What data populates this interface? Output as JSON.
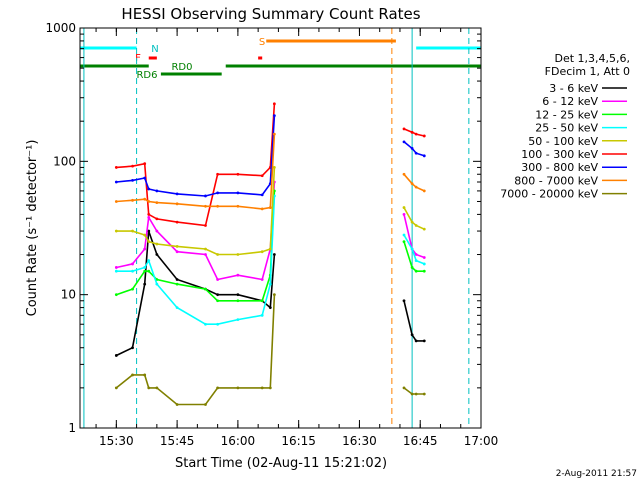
{
  "chart_data": {
    "type": "line",
    "title": "HESSI Observing Summary Count Rates",
    "xlabel": "Start Time (02-Aug-11 15:21:02)",
    "ylabel": "Count Rate (s⁻¹ detector⁻¹)",
    "x_ticks": [
      "15:30",
      "15:45",
      "16:00",
      "16:15",
      "16:30",
      "16:45",
      "17:00"
    ],
    "y_ticks": [
      "1",
      "10",
      "100",
      "1000"
    ],
    "ylim": [
      1,
      1000
    ],
    "y_scale": "log",
    "xlim": [
      "15:21:02",
      "17:00:00"
    ],
    "legend_header": [
      "Det 1,3,4,5,6,",
      "FDecim 1, Att 0"
    ],
    "legend_position": "right",
    "flag_labels": {
      "N": "N",
      "F": "F",
      "RD6": "RD6",
      "RD0": "RD0",
      "S": "S"
    },
    "date_stamp": "2-Aug-2011 21:57",
    "series": [
      {
        "name": "3 - 6 keV",
        "color": "#000000",
        "x": [
          "15:30",
          "15:34",
          "15:37",
          "15:38",
          "15:40",
          "15:45",
          "15:52",
          "15:55",
          "16:00",
          "16:06",
          "16:08",
          "16:09",
          "16:41",
          "16:43",
          "16:44",
          "16:46"
        ],
        "values": [
          3.5,
          4.0,
          12,
          30,
          20,
          13,
          11,
          10,
          10,
          9,
          8,
          20,
          9,
          5,
          4.5,
          4.5
        ]
      },
      {
        "name": "6 - 12 keV",
        "color": "#ff00ff",
        "x": [
          "15:30",
          "15:34",
          "15:37",
          "15:38",
          "15:40",
          "15:45",
          "15:52",
          "15:55",
          "16:00",
          "16:06",
          "16:08",
          "16:09",
          "16:41",
          "16:43",
          "16:44",
          "16:46"
        ],
        "values": [
          16,
          17,
          22,
          38,
          30,
          21,
          20,
          13,
          14,
          13,
          22,
          70,
          40,
          22,
          20,
          19
        ]
      },
      {
        "name": "12 - 25 keV",
        "color": "#00ff00",
        "x": [
          "15:30",
          "15:34",
          "15:37",
          "15:38",
          "15:40",
          "15:45",
          "15:52",
          "15:55",
          "16:00",
          "16:06",
          "16:08",
          "16:09",
          "16:41",
          "16:43",
          "16:44",
          "16:46"
        ],
        "values": [
          10,
          11,
          15,
          15,
          13,
          12,
          11,
          9,
          9,
          9,
          14,
          60,
          25,
          16,
          15,
          15
        ]
      },
      {
        "name": "25 - 50 keV",
        "color": "#00ffff",
        "x": [
          "15:30",
          "15:34",
          "15:37",
          "15:38",
          "15:40",
          "15:45",
          "15:52",
          "15:55",
          "16:00",
          "16:06",
          "16:08",
          "16:09",
          "16:41",
          "16:43",
          "16:44",
          "16:46"
        ],
        "values": [
          15,
          15,
          16,
          18,
          12,
          8,
          6,
          6,
          6.5,
          7,
          12,
          55,
          28,
          22,
          18,
          17
        ]
      },
      {
        "name": "50 - 100 keV",
        "color": "#c8c800",
        "x": [
          "15:30",
          "15:34",
          "15:37",
          "15:38",
          "15:40",
          "15:45",
          "15:52",
          "15:55",
          "16:00",
          "16:06",
          "16:08",
          "16:09",
          "16:41",
          "16:43",
          "16:44",
          "16:46"
        ],
        "values": [
          30,
          30,
          28,
          25,
          24,
          23,
          22,
          20,
          20,
          21,
          22,
          90,
          45,
          35,
          33,
          31
        ]
      },
      {
        "name": "100 - 300 keV",
        "color": "#ff0000",
        "x": [
          "15:30",
          "15:34",
          "15:37",
          "15:38",
          "15:40",
          "15:45",
          "15:52",
          "15:55",
          "16:00",
          "16:06",
          "16:08",
          "16:09",
          "16:41",
          "16:43",
          "16:44",
          "16:46"
        ],
        "values": [
          90,
          92,
          96,
          40,
          37,
          35,
          33,
          80,
          80,
          78,
          90,
          270,
          175,
          165,
          160,
          155
        ]
      },
      {
        "name": "300 - 800 keV",
        "color": "#0000ff",
        "x": [
          "15:30",
          "15:34",
          "15:37",
          "15:38",
          "15:40",
          "15:45",
          "15:52",
          "15:55",
          "16:00",
          "16:06",
          "16:08",
          "16:09",
          "16:41",
          "16:43",
          "16:44",
          "16:46"
        ],
        "values": [
          70,
          72,
          75,
          62,
          60,
          57,
          55,
          58,
          58,
          56,
          68,
          220,
          140,
          125,
          115,
          110
        ]
      },
      {
        "name": "800 - 7000 keV",
        "color": "#ff8000",
        "x": [
          "15:30",
          "15:34",
          "15:37",
          "15:38",
          "15:40",
          "15:45",
          "15:52",
          "15:55",
          "16:00",
          "16:06",
          "16:08",
          "16:09",
          "16:41",
          "16:43",
          "16:44",
          "16:46"
        ],
        "values": [
          50,
          51,
          52,
          50,
          49,
          48,
          46,
          46,
          46,
          44,
          45,
          160,
          80,
          68,
          64,
          60
        ]
      },
      {
        "name": "7000 - 20000 keV",
        "color": "#808000",
        "x": [
          "15:30",
          "15:34",
          "15:37",
          "15:38",
          "15:40",
          "15:45",
          "15:52",
          "15:55",
          "16:00",
          "16:06",
          "16:08",
          "16:09",
          "16:41",
          "16:43",
          "16:44",
          "16:46"
        ],
        "values": [
          2,
          2.5,
          2.5,
          2,
          2,
          1.5,
          1.5,
          2,
          2,
          2,
          2,
          10,
          2,
          1.8,
          1.8,
          1.8
        ]
      }
    ],
    "flags": [
      {
        "label": "N",
        "color": "#00ffff",
        "segments": [
          [
            "15:21:02",
            "15:35"
          ],
          [
            "16:44",
            "17:00"
          ]
        ]
      },
      {
        "label": "RD0",
        "color": "#008000",
        "segments": [
          [
            "15:21:02",
            "15:38"
          ],
          [
            "15:57",
            "17:00"
          ]
        ]
      },
      {
        "label": "RD6",
        "color": "#008000",
        "segments": [
          [
            "15:41",
            "15:56"
          ]
        ]
      },
      {
        "label": "F",
        "color": "#ff0000",
        "segments": [
          [
            "15:38",
            "15:40"
          ],
          [
            "16:05",
            "16:06"
          ]
        ]
      },
      {
        "label": "S",
        "color": "#ff8000",
        "segments": [
          [
            "16:07",
            "16:39"
          ]
        ]
      }
    ]
  }
}
